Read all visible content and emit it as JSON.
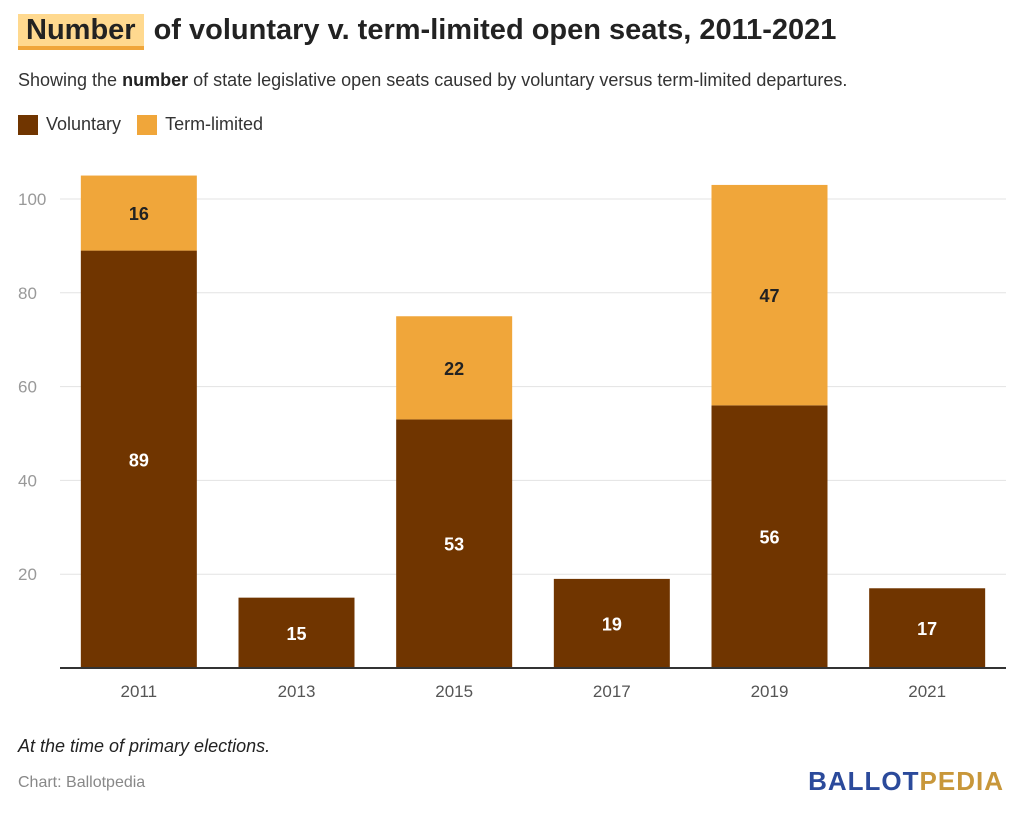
{
  "title": {
    "highlight": "Number",
    "rest": "of voluntary v. term-limited open seats, 2011-2021"
  },
  "subtitle": {
    "before": "Showing the ",
    "bold": "number",
    "after": " of state legislative open seats caused by voluntary versus term-limited departures."
  },
  "note": "At the time of primary elections.",
  "source": "Chart: Ballotpedia",
  "logo": {
    "part1": "BALLOT",
    "part2": "PEDIA"
  },
  "colors": {
    "voluntary": "#703500",
    "term_limited": "#f0a63a",
    "grid": "#e3e3e3",
    "axis": "#333333"
  },
  "chart_data": {
    "type": "bar",
    "stacked": true,
    "categories": [
      "2011",
      "2013",
      "2015",
      "2017",
      "2019",
      "2021"
    ],
    "series": [
      {
        "name": "Voluntary",
        "values": [
          89,
          15,
          53,
          19,
          56,
          17
        ]
      },
      {
        "name": "Term-limited",
        "values": [
          16,
          0,
          22,
          0,
          47,
          0
        ]
      }
    ],
    "yticks": [
      20,
      40,
      60,
      80,
      100
    ],
    "ylim": [
      0,
      105
    ],
    "grid": true,
    "legend_position": "top-left"
  }
}
